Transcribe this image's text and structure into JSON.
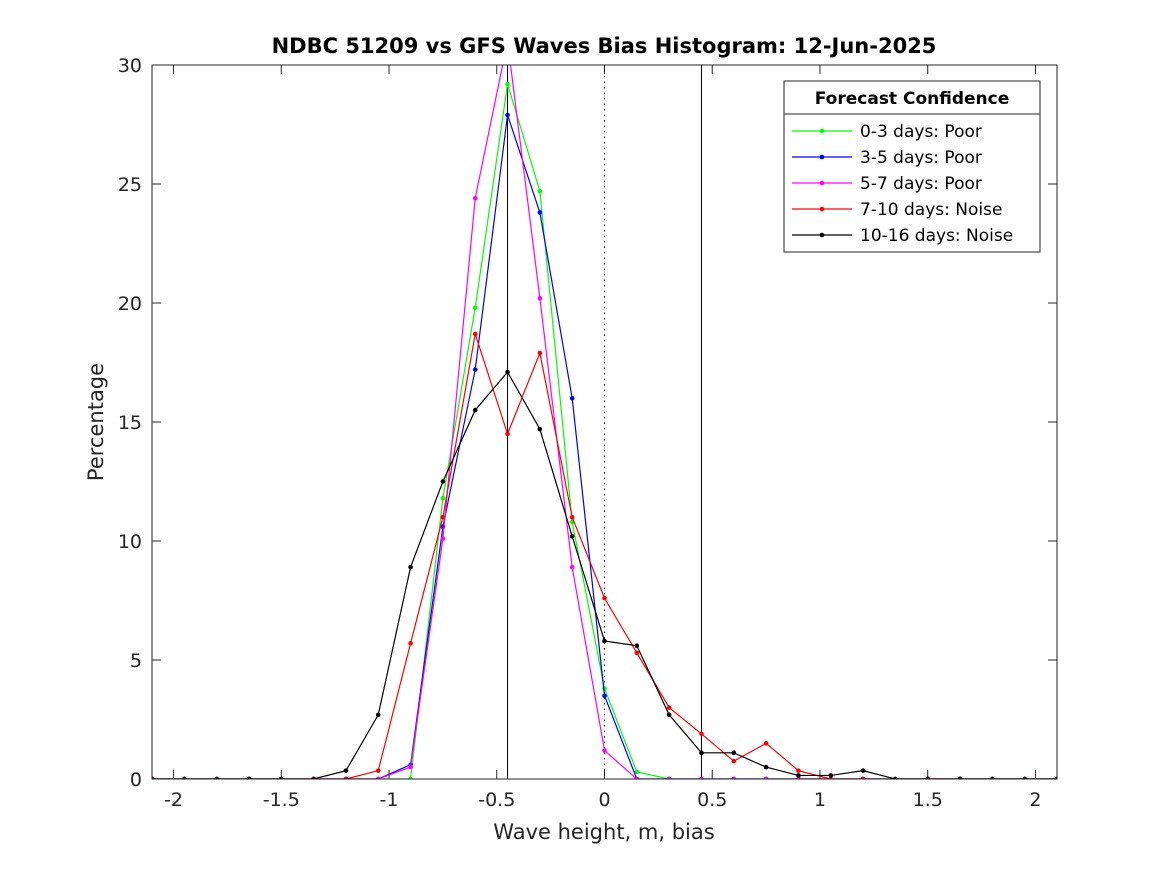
{
  "chart_data": {
    "type": "line",
    "title": "NDBC 51209 vs GFS Waves Bias Histogram: 12-Jun-2025",
    "xlabel": "Wave height, m, bias",
    "ylabel": "Percentage",
    "xlim": [
      -2.1,
      2.1
    ],
    "ylim": [
      0,
      30
    ],
    "xticks": [
      -2,
      -1.5,
      -1,
      -0.5,
      0,
      0.5,
      1,
      1.5,
      2
    ],
    "xtick_labels": [
      "-2",
      "-1.5",
      "-1",
      "-0.5",
      "0",
      "0.5",
      "1",
      "1.5",
      "2"
    ],
    "yticks": [
      0,
      5,
      10,
      15,
      20,
      25,
      30
    ],
    "ytick_labels": [
      "0",
      "5",
      "10",
      "15",
      "20",
      "25",
      "30"
    ],
    "grid": false,
    "vlines": [
      {
        "x": -0.45,
        "style": "solid",
        "color": "#000000"
      },
      {
        "x": 0,
        "style": "dotted",
        "color": "#000000"
      },
      {
        "x": 0.45,
        "style": "solid",
        "color": "#000000"
      }
    ],
    "legend": {
      "title": "Forecast Confidence",
      "placement": "top-right"
    },
    "x": [
      -2.1,
      -1.95,
      -1.8,
      -1.65,
      -1.5,
      -1.35,
      -1.2,
      -1.05,
      -0.9,
      -0.75,
      -0.6,
      -0.45,
      -0.3,
      -0.15,
      0,
      0.15,
      0.3,
      0.45,
      0.6,
      0.75,
      0.9,
      1.05,
      1.2,
      1.35,
      1.5,
      1.65,
      1.8,
      1.95,
      2.1
    ],
    "series": [
      {
        "name": "0-3 days: Poor",
        "color": "#00ff00",
        "values": [
          0,
          0,
          0,
          0,
          0,
          0,
          0,
          0,
          0,
          11.8,
          19.8,
          29.2,
          24.7,
          10.8,
          3.8,
          0.3,
          0,
          0,
          0,
          0,
          0,
          0,
          0,
          0,
          0,
          0,
          0,
          0,
          0
        ]
      },
      {
        "name": "3-5 days: Poor",
        "color": "#0000ff",
        "values": [
          0,
          0,
          0,
          0,
          0,
          0,
          0,
          0,
          0.6,
          10.6,
          17.2,
          27.9,
          23.8,
          16.0,
          3.5,
          0,
          0,
          0,
          0,
          0,
          0,
          0,
          0,
          0,
          0,
          0,
          0,
          0,
          0
        ]
      },
      {
        "name": "5-7 days: Poor",
        "color": "#ff00ff",
        "values": [
          0,
          0,
          0,
          0,
          0,
          0,
          0,
          0,
          0.5,
          10.1,
          24.4,
          31.0,
          20.2,
          8.9,
          1.2,
          0,
          0,
          0,
          0,
          0,
          0,
          0,
          0,
          0,
          0,
          0,
          0,
          0,
          0
        ]
      },
      {
        "name": "7-10 days: Noise",
        "color": "#ff0000",
        "values": [
          0,
          0,
          0,
          0,
          0,
          0,
          0,
          0.35,
          5.7,
          11.0,
          18.7,
          14.5,
          17.9,
          11.0,
          7.6,
          5.3,
          3.0,
          1.9,
          0.75,
          1.5,
          0.35,
          0,
          0,
          0,
          0,
          0,
          0,
          0,
          0
        ]
      },
      {
        "name": "10-16 days: Noise",
        "color": "#000000",
        "values": [
          0,
          0,
          0,
          0,
          0,
          0,
          0.35,
          2.7,
          8.9,
          12.5,
          15.5,
          17.1,
          14.7,
          10.2,
          5.8,
          5.6,
          2.7,
          1.1,
          1.1,
          0.5,
          0.15,
          0.15,
          0.35,
          0,
          0,
          0,
          0,
          0,
          0
        ]
      }
    ]
  }
}
